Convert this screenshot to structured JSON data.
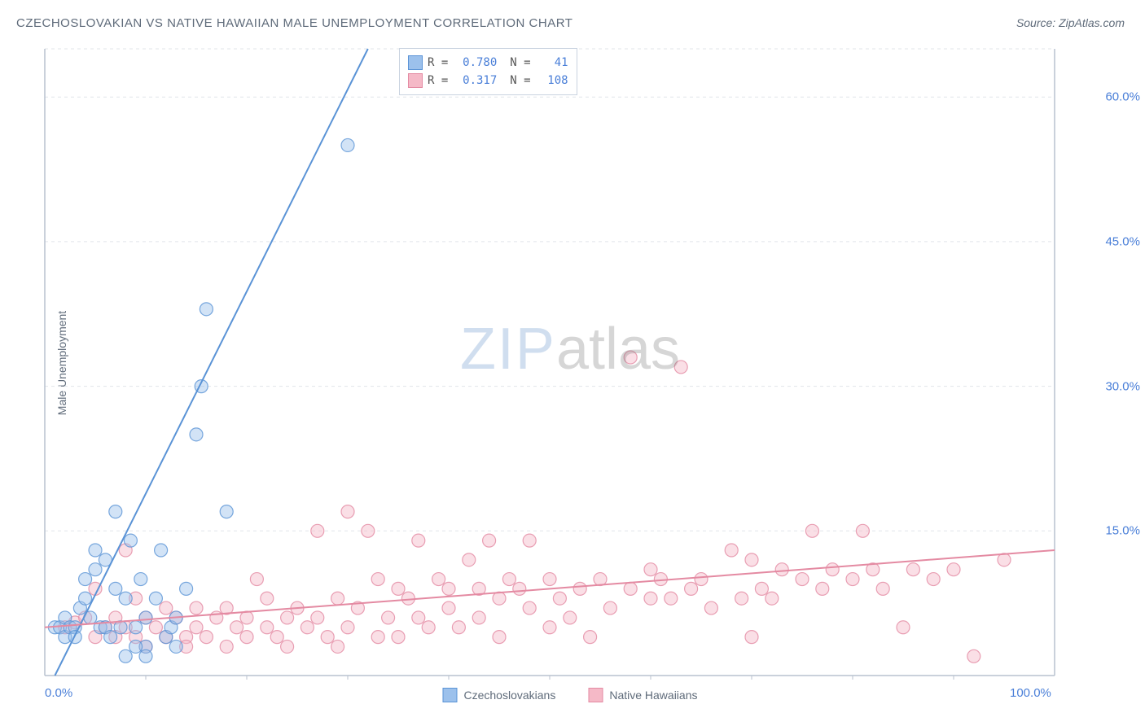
{
  "title": "CZECHOSLOVAKIAN VS NATIVE HAWAIIAN MALE UNEMPLOYMENT CORRELATION CHART",
  "source": "Source: ZipAtlas.com",
  "ylabel": "Male Unemployment",
  "watermark_zip": "ZIP",
  "watermark_atlas": "atlas",
  "chart": {
    "type": "scatter",
    "background_color": "#ffffff",
    "grid_color": "#e1e5ea",
    "axis_color": "#b9c2cf",
    "xlim": [
      0,
      100
    ],
    "ylim": [
      0,
      65
    ],
    "xtick_labels": [
      "0.0%",
      "100.0%"
    ],
    "xtick_positions": [
      0,
      100
    ],
    "xtick_minor": [
      10,
      20,
      30,
      40,
      50,
      60,
      70,
      80,
      90
    ],
    "ytick_labels": [
      "15.0%",
      "30.0%",
      "45.0%",
      "60.0%"
    ],
    "ytick_positions": [
      15,
      30,
      45,
      60
    ],
    "marker_radius": 8,
    "marker_opacity": 0.45,
    "line_width": 2,
    "series": [
      {
        "name": "Czechoslovakians",
        "color_fill": "#9cc1ec",
        "color_stroke": "#5a93d6",
        "R": "0.780",
        "N": "41",
        "trend": {
          "x1": 1,
          "y1": 0,
          "x2": 32,
          "y2": 65
        },
        "points": [
          [
            1,
            5
          ],
          [
            1.5,
            5
          ],
          [
            2,
            4
          ],
          [
            2,
            6
          ],
          [
            2.5,
            5
          ],
          [
            3,
            5
          ],
          [
            3,
            4
          ],
          [
            3.5,
            7
          ],
          [
            4,
            10
          ],
          [
            4,
            8
          ],
          [
            4.5,
            6
          ],
          [
            5,
            11
          ],
          [
            5,
            13
          ],
          [
            5.5,
            5
          ],
          [
            6,
            5
          ],
          [
            6,
            12
          ],
          [
            6.5,
            4
          ],
          [
            7,
            17
          ],
          [
            7,
            9
          ],
          [
            7.5,
            5
          ],
          [
            8,
            8
          ],
          [
            8,
            2
          ],
          [
            8.5,
            14
          ],
          [
            9,
            5
          ],
          [
            9.5,
            10
          ],
          [
            10,
            6
          ],
          [
            10,
            3
          ],
          [
            11,
            8
          ],
          [
            11.5,
            13
          ],
          [
            12,
            4
          ],
          [
            12.5,
            5
          ],
          [
            13,
            6
          ],
          [
            13,
            3
          ],
          [
            14,
            9
          ],
          [
            15,
            25
          ],
          [
            15.5,
            30
          ],
          [
            16,
            38
          ],
          [
            18,
            17
          ],
          [
            10,
            2
          ],
          [
            9,
            3
          ],
          [
            30,
            55
          ]
        ]
      },
      {
        "name": "Native Hawaiians",
        "color_fill": "#f5b9c7",
        "color_stroke": "#e48aa2",
        "R": "0.317",
        "N": "108",
        "trend": {
          "x1": 0,
          "y1": 5,
          "x2": 100,
          "y2": 13
        },
        "points": [
          [
            2,
            5
          ],
          [
            3,
            5.5
          ],
          [
            4,
            6
          ],
          [
            5,
            4
          ],
          [
            5,
            9
          ],
          [
            6,
            5
          ],
          [
            7,
            6
          ],
          [
            7,
            4
          ],
          [
            8,
            5
          ],
          [
            8,
            13
          ],
          [
            9,
            8
          ],
          [
            9,
            4
          ],
          [
            10,
            6
          ],
          [
            10,
            3
          ],
          [
            11,
            5
          ],
          [
            12,
            4
          ],
          [
            12,
            7
          ],
          [
            13,
            6
          ],
          [
            14,
            4
          ],
          [
            14,
            3
          ],
          [
            15,
            5
          ],
          [
            15,
            7
          ],
          [
            16,
            4
          ],
          [
            17,
            6
          ],
          [
            18,
            3
          ],
          [
            18,
            7
          ],
          [
            19,
            5
          ],
          [
            20,
            6
          ],
          [
            20,
            4
          ],
          [
            21,
            10
          ],
          [
            22,
            5
          ],
          [
            22,
            8
          ],
          [
            23,
            4
          ],
          [
            24,
            6
          ],
          [
            24,
            3
          ],
          [
            25,
            7
          ],
          [
            26,
            5
          ],
          [
            27,
            15
          ],
          [
            27,
            6
          ],
          [
            28,
            4
          ],
          [
            29,
            3
          ],
          [
            29,
            8
          ],
          [
            30,
            17
          ],
          [
            30,
            5
          ],
          [
            31,
            7
          ],
          [
            32,
            15
          ],
          [
            33,
            4
          ],
          [
            33,
            10
          ],
          [
            34,
            6
          ],
          [
            35,
            9
          ],
          [
            35,
            4
          ],
          [
            36,
            8
          ],
          [
            37,
            14
          ],
          [
            37,
            6
          ],
          [
            38,
            5
          ],
          [
            39,
            10
          ],
          [
            40,
            7
          ],
          [
            40,
            9
          ],
          [
            41,
            5
          ],
          [
            42,
            12
          ],
          [
            43,
            9
          ],
          [
            43,
            6
          ],
          [
            44,
            14
          ],
          [
            45,
            8
          ],
          [
            45,
            4
          ],
          [
            46,
            10
          ],
          [
            47,
            9
          ],
          [
            48,
            14
          ],
          [
            48,
            7
          ],
          [
            50,
            5
          ],
          [
            50,
            10
          ],
          [
            51,
            8
          ],
          [
            52,
            6
          ],
          [
            53,
            9
          ],
          [
            54,
            4
          ],
          [
            55,
            10
          ],
          [
            56,
            7
          ],
          [
            58,
            33
          ],
          [
            58,
            9
          ],
          [
            60,
            8
          ],
          [
            60,
            11
          ],
          [
            61,
            10
          ],
          [
            62,
            8
          ],
          [
            63,
            32
          ],
          [
            64,
            9
          ],
          [
            65,
            10
          ],
          [
            66,
            7
          ],
          [
            68,
            13
          ],
          [
            69,
            8
          ],
          [
            70,
            12
          ],
          [
            70,
            4
          ],
          [
            71,
            9
          ],
          [
            72,
            8
          ],
          [
            73,
            11
          ],
          [
            75,
            10
          ],
          [
            76,
            15
          ],
          [
            77,
            9
          ],
          [
            78,
            11
          ],
          [
            80,
            10
          ],
          [
            81,
            15
          ],
          [
            82,
            11
          ],
          [
            83,
            9
          ],
          [
            85,
            5
          ],
          [
            86,
            11
          ],
          [
            88,
            10
          ],
          [
            90,
            11
          ],
          [
            92,
            2
          ],
          [
            95,
            12
          ]
        ]
      }
    ],
    "bottom_legend": [
      {
        "label": "Czechoslovakians",
        "fill": "#9cc1ec",
        "stroke": "#5a93d6"
      },
      {
        "label": "Native Hawaiians",
        "fill": "#f5b9c7",
        "stroke": "#e48aa2"
      }
    ]
  }
}
